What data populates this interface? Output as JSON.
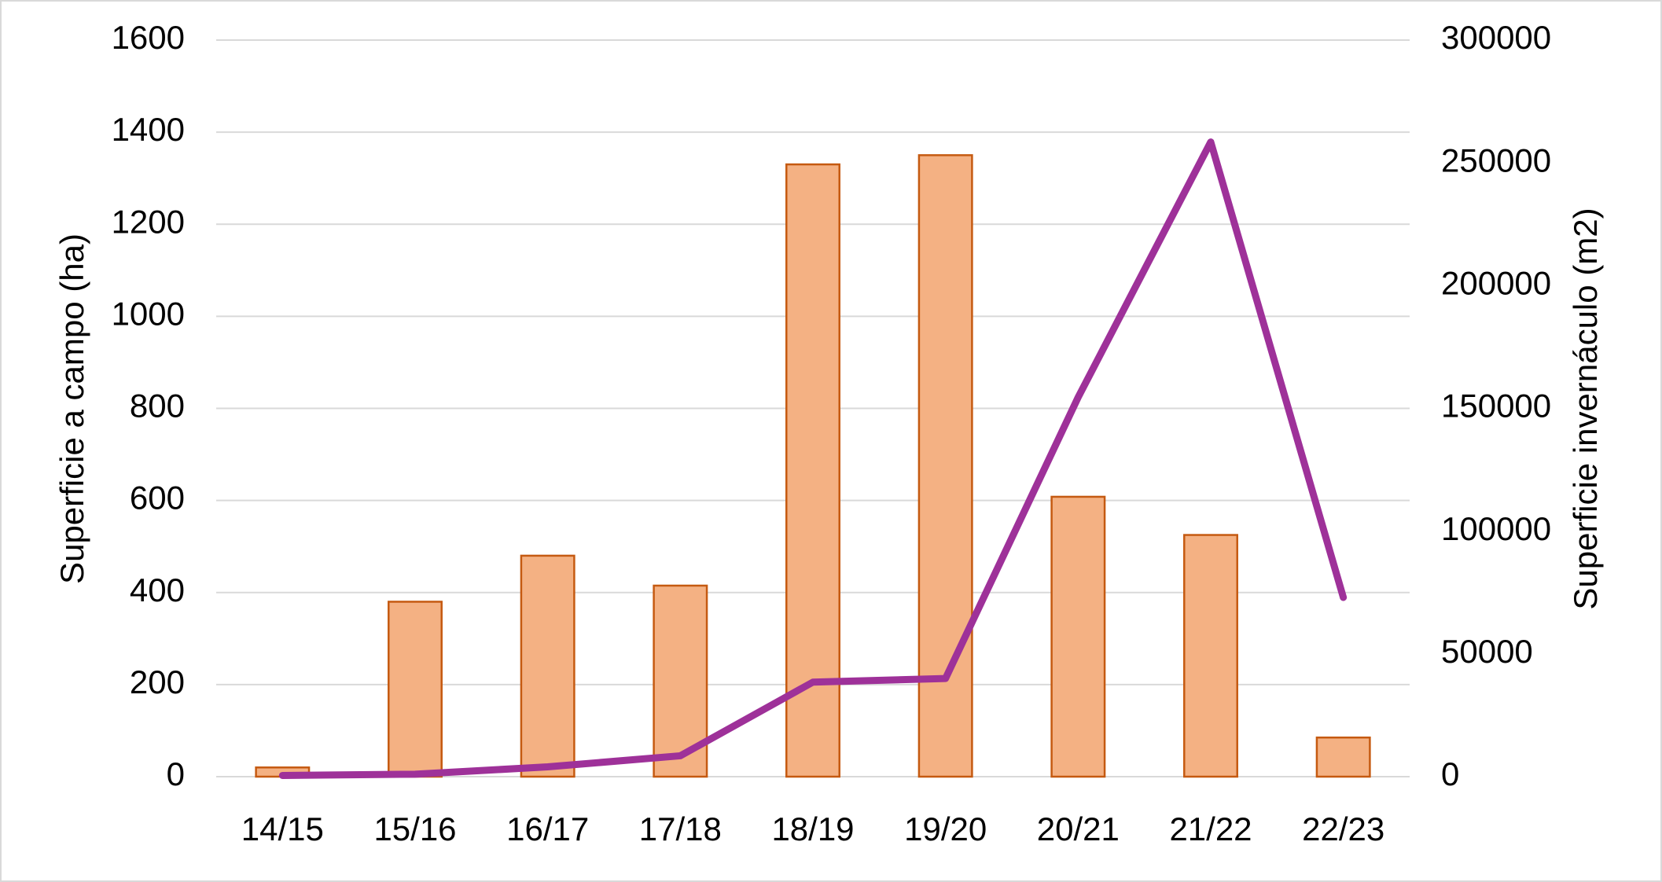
{
  "chart_data": {
    "type": "bar",
    "categories": [
      "14/15",
      "15/16",
      "16/17",
      "17/18",
      "18/19",
      "19/20",
      "20/21",
      "21/22",
      "22/23"
    ],
    "y_label": "Superficie a campo (ha)",
    "y2_label": "Superficie invernáculo (m2)",
    "series": [
      {
        "type": "bar",
        "color": "#f4b183",
        "edge_color": "#c55a11",
        "values": [
          20,
          380,
          480,
          415,
          1330,
          1350,
          608,
          525,
          85
        ]
      },
      {
        "type": "line",
        "axis": "y2",
        "color": "#9e3199",
        "values": [
          500,
          1000,
          4000,
          8500,
          38500,
          40000,
          154500,
          258500,
          73000
        ]
      }
    ],
    "ylim": [
      0,
      1600
    ],
    "yticks": [
      0,
      200,
      400,
      600,
      800,
      1000,
      1200,
      1400,
      1600
    ],
    "y2lim": [
      0,
      300000
    ],
    "y2ticks": [
      0,
      50000,
      100000,
      150000,
      200000,
      250000,
      300000
    ],
    "grid": true
  }
}
